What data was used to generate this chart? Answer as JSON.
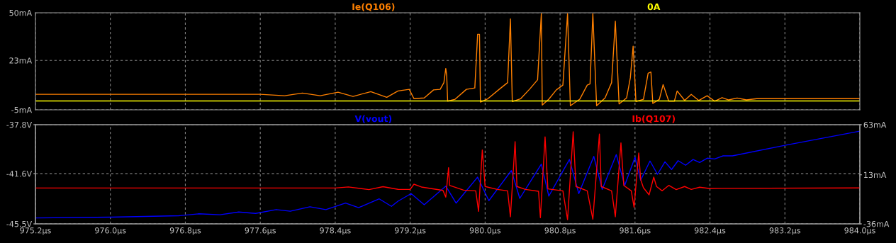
{
  "chart_data": [
    {
      "type": "line",
      "xlim": [
        975.2,
        984.0
      ],
      "xticks": [
        {
          "value": 975.2,
          "label": null
        },
        {
          "value": 976.0,
          "label": null
        },
        {
          "value": 976.8,
          "label": null
        },
        {
          "value": 977.6,
          "label": null
        },
        {
          "value": 978.4,
          "label": null
        },
        {
          "value": 979.2,
          "label": null
        },
        {
          "value": 980.0,
          "label": null
        },
        {
          "value": 980.8,
          "label": null
        },
        {
          "value": 981.6,
          "label": null
        },
        {
          "value": 982.4,
          "label": null
        },
        {
          "value": 983.2,
          "label": null
        },
        {
          "value": 984.0,
          "label": null
        }
      ],
      "ylim": [
        -5,
        50
      ],
      "yticks": [
        {
          "value": -5,
          "label": "-5mA"
        },
        {
          "value": 23,
          "label": "23mA"
        },
        {
          "value": 50,
          "label": "50mA"
        }
      ],
      "grid": true,
      "legend": "top",
      "tick_labels": "y",
      "series": [
        {
          "name": "Ie(Q106)",
          "color": "#ff8000",
          "x": [
            975.2,
            977.6,
            977.86,
            978.05,
            978.24,
            978.43,
            978.59,
            978.78,
            978.95,
            979.07,
            979.19,
            979.24,
            979.35,
            979.45,
            979.52,
            979.56,
            979.58,
            979.59,
            979.6,
            979.68,
            979.8,
            979.89,
            979.92,
            979.94,
            979.95,
            980.03,
            980.15,
            980.24,
            980.27,
            980.29,
            980.38,
            980.48,
            980.56,
            980.6,
            980.61,
            980.68,
            980.76,
            980.83,
            980.88,
            980.91,
            981.01,
            981.09,
            981.12,
            981.15,
            981.19,
            981.28,
            981.35,
            981.39,
            981.43,
            981.51,
            981.55,
            981.58,
            981.61,
            981.69,
            981.74,
            981.77,
            981.79,
            981.86,
            981.9,
            981.96,
            982.02,
            982.05,
            982.13,
            982.2,
            982.28,
            982.37,
            982.45,
            982.53,
            982.6,
            982.69,
            982.79,
            982.9,
            983.2,
            984.0
          ],
          "values": [
            3.8,
            3.8,
            3.0,
            4.5,
            3.0,
            5.0,
            2.6,
            5.3,
            2.1,
            5.7,
            6.6,
            1.3,
            1.7,
            6.3,
            6.6,
            10.4,
            18.4,
            14.4,
            -0.1,
            1.0,
            6.6,
            7.4,
            37.8,
            37.8,
            -0.6,
            1.3,
            6.6,
            10.4,
            46.5,
            -0.3,
            1.3,
            7.0,
            12.0,
            49.5,
            -2.3,
            1.0,
            6.3,
            9.0,
            49.5,
            -2.7,
            1.0,
            9.0,
            9.7,
            49.5,
            -2.7,
            1.7,
            10.4,
            45.2,
            -1.7,
            1.7,
            13.1,
            31.1,
            -0.3,
            1.0,
            15.7,
            16.4,
            -1.4,
            1.0,
            9.3,
            -0.1,
            -0.1,
            5.7,
            0.3,
            3.7,
            0.3,
            3.0,
            -0.1,
            1.9,
            0.6,
            1.7,
            0.6,
            1.3,
            1.3,
            1.3
          ]
        },
        {
          "name": "0A",
          "color": "#ffff00",
          "x": [
            975.2,
            984.0
          ],
          "values": [
            0,
            0
          ]
        }
      ]
    },
    {
      "type": "line",
      "xlim": [
        975.2,
        984.0
      ],
      "xticks": [
        {
          "value": 975.2,
          "label": "975.2µs"
        },
        {
          "value": 976.0,
          "label": "976.0µs"
        },
        {
          "value": 976.8,
          "label": "976.8µs"
        },
        {
          "value": 977.6,
          "label": "977.6µs"
        },
        {
          "value": 978.4,
          "label": "978.4µs"
        },
        {
          "value": 979.2,
          "label": "979.2µs"
        },
        {
          "value": 980.0,
          "label": "980.0µs"
        },
        {
          "value": 980.8,
          "label": "980.8µs"
        },
        {
          "value": 981.6,
          "label": "981.6µs"
        },
        {
          "value": 982.4,
          "label": "982.4µs"
        },
        {
          "value": 983.2,
          "label": "983.2µs"
        },
        {
          "value": 984.0,
          "label": "984.0µs"
        }
      ],
      "ylim": [
        -45.5,
        -37.8
      ],
      "yticks": [
        {
          "value": -45.5,
          "label": "-45.5V"
        },
        {
          "value": -41.6,
          "label": "-41.6V"
        },
        {
          "value": -37.8,
          "label": "-37.8V"
        }
      ],
      "y2lim": [
        -36,
        63
      ],
      "y2ticks": [
        {
          "value": -36,
          "label": "-36mA"
        },
        {
          "value": 13,
          "label": "13mA"
        },
        {
          "value": 63,
          "label": "63mA"
        }
      ],
      "grid": true,
      "legend": "top",
      "series": [
        {
          "name": "V(vout)",
          "color": "#0000ff",
          "x": [
            975.2,
            976.01,
            976.73,
            976.94,
            977.17,
            977.37,
            977.55,
            977.77,
            977.92,
            978.13,
            978.3,
            978.51,
            978.65,
            978.87,
            979.0,
            979.07,
            979.21,
            979.35,
            979.58,
            979.69,
            979.92,
            980.04,
            980.28,
            980.37,
            980.6,
            980.68,
            980.9,
            981.0,
            981.16,
            981.25,
            981.4,
            981.49,
            981.6,
            981.66,
            981.76,
            981.84,
            981.92,
            981.99,
            982.06,
            982.14,
            982.22,
            982.29,
            982.37,
            982.45,
            982.54,
            982.64,
            983.2,
            984.0
          ],
          "values": [
            -45.04,
            -44.98,
            -44.87,
            -44.72,
            -44.79,
            -44.58,
            -44.69,
            -44.39,
            -44.52,
            -44.17,
            -44.39,
            -43.88,
            -44.24,
            -43.56,
            -44.14,
            -43.74,
            -43.15,
            -44.01,
            -42.57,
            -43.89,
            -41.87,
            -43.7,
            -41.36,
            -43.52,
            -40.86,
            -43.34,
            -40.5,
            -43.15,
            -40.26,
            -42.82,
            -40.12,
            -42.51,
            -40.33,
            -42.12,
            -40.62,
            -41.65,
            -40.68,
            -41.28,
            -40.59,
            -40.95,
            -40.5,
            -40.73,
            -40.4,
            -40.46,
            -40.22,
            -40.22,
            -39.4,
            -38.3
          ]
        },
        {
          "name": "Ib(Q107)",
          "color": "#ff0000",
          "axis": "y2",
          "x": [
            975.2,
            978.4,
            978.54,
            978.76,
            978.91,
            979.07,
            979.2,
            979.24,
            979.32,
            979.55,
            979.58,
            979.61,
            979.62,
            979.77,
            979.9,
            979.93,
            979.97,
            980.0,
            980.13,
            980.24,
            980.27,
            980.32,
            980.34,
            980.43,
            980.57,
            980.59,
            980.64,
            980.67,
            980.83,
            980.88,
            980.94,
            980.97,
            981.09,
            981.15,
            981.22,
            981.24,
            981.35,
            981.39,
            981.45,
            981.48,
            981.56,
            981.59,
            981.64,
            981.66,
            981.69,
            981.75,
            981.8,
            981.83,
            981.89,
            981.96,
            982.04,
            982.13,
            982.2,
            982.29,
            982.39,
            984.0
          ],
          "values": [
            -0.2,
            -0.2,
            0.9,
            -1.8,
            1.1,
            -1.5,
            -1.6,
            3.6,
            0.8,
            -2.6,
            -9.3,
            20.1,
            2.4,
            -2.3,
            -3.0,
            -23.5,
            37.8,
            1.3,
            -1.6,
            -3.0,
            -28.9,
            46.0,
            1.3,
            -1.6,
            -3.5,
            -29.8,
            50.8,
            -1.1,
            -3.0,
            -31.8,
            55.9,
            1.3,
            -3.0,
            -31.3,
            53.6,
            1.3,
            -3.0,
            -28.9,
            44.8,
            2.4,
            -3.0,
            -19.5,
            34.7,
            8.3,
            0.1,
            -7.0,
            10.7,
            1.3,
            -3.0,
            2.4,
            -1.8,
            1.3,
            -1.6,
            0.6,
            -0.6,
            -0.1
          ]
        }
      ]
    }
  ]
}
